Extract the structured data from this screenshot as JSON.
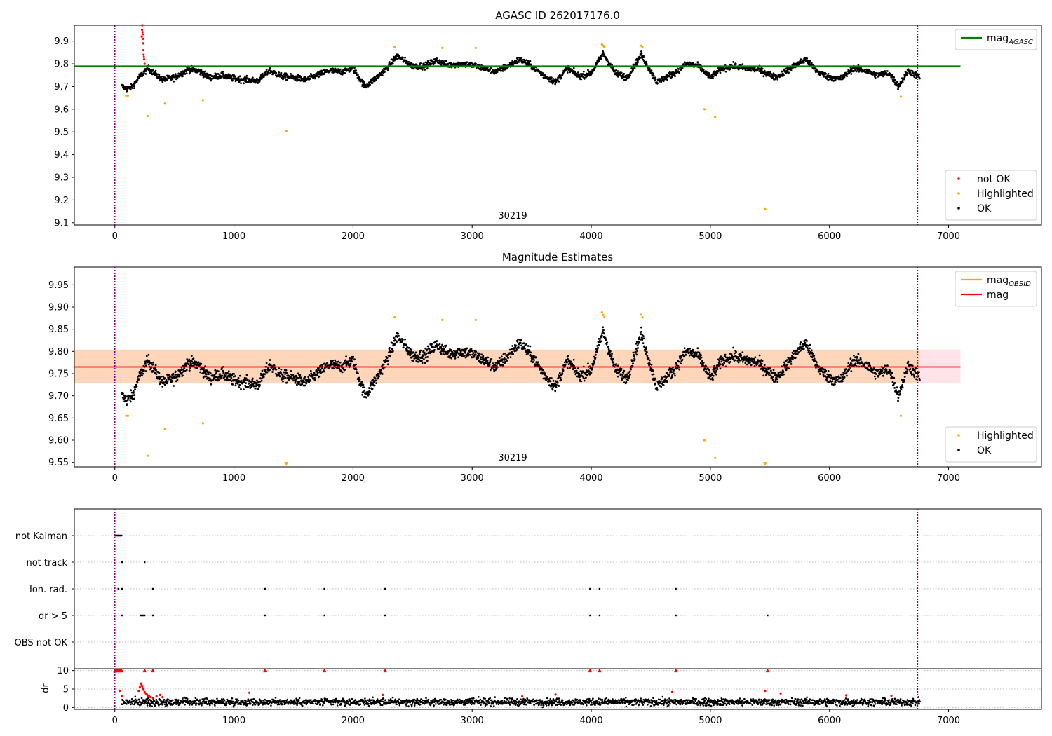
{
  "chart_data": [
    {
      "type": "scatter",
      "title": "AGASC ID 262017176.0",
      "xlim": [
        -340,
        7780
      ],
      "ylim": [
        9.09,
        9.97
      ],
      "xticks": [
        0,
        1000,
        2000,
        3000,
        4000,
        5000,
        6000,
        7000
      ],
      "yticks": [
        9.1,
        9.2,
        9.3,
        9.4,
        9.5,
        9.6,
        9.7,
        9.8,
        9.9
      ],
      "ytick_decimals": 1,
      "grid": false,
      "obsid_label": "30219",
      "obsid_label_x": 3330,
      "obs_boundaries": [
        0,
        6740
      ],
      "reference_lines": [
        {
          "name": "mag_AGASC",
          "label_main": "mag",
          "label_sub": "AGASC",
          "y": 9.79,
          "x_range": [
            -340,
            7100
          ],
          "color": "#008000"
        }
      ],
      "legends": [
        {
          "position": "top-right",
          "entries": [
            {
              "kind": "line",
              "label_main": "mag",
              "label_sub": "AGASC",
              "color": "#008000"
            }
          ]
        },
        {
          "position": "bottom-right",
          "entries": [
            {
              "kind": "point",
              "label": "not OK",
              "color": "#ff0000"
            },
            {
              "kind": "point",
              "label": "Highlighted",
              "color": "#ffa500"
            },
            {
              "kind": "point",
              "label": "OK",
              "color": "#000000"
            }
          ]
        }
      ],
      "series": [
        {
          "name": "OK",
          "color": "#000000",
          "style": "dense-band",
          "x_range": [
            60,
            6760
          ],
          "baseline": 9.762,
          "trend": [
            [
              60,
              9.7
            ],
            [
              100,
              9.69
            ],
            [
              150,
              9.7
            ],
            [
              200,
              9.74
            ],
            [
              280,
              9.78
            ],
            [
              330,
              9.76
            ],
            [
              400,
              9.73
            ],
            [
              500,
              9.74
            ],
            [
              620,
              9.775
            ],
            [
              700,
              9.77
            ],
            [
              800,
              9.74
            ],
            [
              900,
              9.75
            ],
            [
              1000,
              9.735
            ],
            [
              1100,
              9.73
            ],
            [
              1200,
              9.725
            ],
            [
              1300,
              9.77
            ],
            [
              1400,
              9.745
            ],
            [
              1500,
              9.74
            ],
            [
              1600,
              9.73
            ],
            [
              1700,
              9.75
            ],
            [
              1800,
              9.77
            ],
            [
              1900,
              9.765
            ],
            [
              2000,
              9.78
            ],
            [
              2100,
              9.7
            ],
            [
              2200,
              9.74
            ],
            [
              2300,
              9.79
            ],
            [
              2370,
              9.835
            ],
            [
              2500,
              9.79
            ],
            [
              2600,
              9.79
            ],
            [
              2700,
              9.815
            ],
            [
              2800,
              9.795
            ],
            [
              2900,
              9.8
            ],
            [
              3000,
              9.795
            ],
            [
              3100,
              9.78
            ],
            [
              3200,
              9.765
            ],
            [
              3300,
              9.79
            ],
            [
              3400,
              9.82
            ],
            [
              3500,
              9.79
            ],
            [
              3600,
              9.75
            ],
            [
              3700,
              9.72
            ],
            [
              3800,
              9.78
            ],
            [
              3900,
              9.745
            ],
            [
              4000,
              9.76
            ],
            [
              4100,
              9.845
            ],
            [
              4200,
              9.76
            ],
            [
              4300,
              9.74
            ],
            [
              4420,
              9.84
            ],
            [
              4550,
              9.72
            ],
            [
              4700,
              9.76
            ],
            [
              4800,
              9.8
            ],
            [
              4900,
              9.79
            ],
            [
              5000,
              9.74
            ],
            [
              5100,
              9.78
            ],
            [
              5200,
              9.79
            ],
            [
              5300,
              9.78
            ],
            [
              5400,
              9.775
            ],
            [
              5550,
              9.74
            ],
            [
              5700,
              9.79
            ],
            [
              5800,
              9.82
            ],
            [
              5900,
              9.765
            ],
            [
              6000,
              9.74
            ],
            [
              6100,
              9.735
            ],
            [
              6200,
              9.78
            ],
            [
              6300,
              9.77
            ],
            [
              6400,
              9.75
            ],
            [
              6500,
              9.76
            ],
            [
              6580,
              9.7
            ],
            [
              6660,
              9.77
            ],
            [
              6760,
              9.74
            ]
          ]
        },
        {
          "name": "not OK",
          "color": "#ff0000",
          "style": "cluster",
          "points": [
            [
              230,
              9.97
            ],
            [
              232,
              9.94
            ],
            [
              234,
              9.93
            ],
            [
              236,
              9.91
            ],
            [
              238,
              9.89
            ],
            [
              240,
              9.86
            ],
            [
              242,
              9.84
            ],
            [
              244,
              9.83
            ],
            [
              246,
              9.82
            ],
            [
              250,
              9.8
            ],
            [
              228,
              9.95
            ],
            [
              226,
              9.92
            ]
          ]
        },
        {
          "name": "Highlighted",
          "color": "#ffa500",
          "style": "points",
          "points": [
            [
              95,
              9.66
            ],
            [
              110,
              9.66
            ],
            [
              275,
              9.57
            ],
            [
              420,
              9.625
            ],
            [
              740,
              9.64
            ],
            [
              1440,
              9.505
            ],
            [
              2350,
              9.875
            ],
            [
              2750,
              9.87
            ],
            [
              3030,
              9.87
            ],
            [
              4090,
              9.885
            ],
            [
              4100,
              9.88
            ],
            [
              4110,
              9.875
            ],
            [
              4420,
              9.88
            ],
            [
              4430,
              9.875
            ],
            [
              4950,
              9.6
            ],
            [
              5040,
              9.565
            ],
            [
              5460,
              9.16
            ],
            [
              6600,
              9.655
            ]
          ]
        }
      ]
    },
    {
      "type": "scatter",
      "title": "Magnitude Estimates",
      "xlim": [
        -340,
        7780
      ],
      "ylim": [
        9.54,
        9.99
      ],
      "xticks": [
        0,
        1000,
        2000,
        3000,
        4000,
        5000,
        6000,
        7000
      ],
      "yticks": [
        9.55,
        9.6,
        9.65,
        9.7,
        9.75,
        9.8,
        9.85,
        9.9,
        9.95
      ],
      "ytick_decimals": 2,
      "grid": false,
      "obsid_label": "30219",
      "obsid_label_x": 3330,
      "obs_boundaries": [
        0,
        6740
      ],
      "bands": [
        {
          "y_range": [
            9.728,
            9.804
          ],
          "x_range": [
            -340,
            7100
          ],
          "color": "#ffc0cb",
          "opacity": 0.45
        },
        {
          "y_range": [
            9.728,
            9.804
          ],
          "x_range": [
            -340,
            6760
          ],
          "color": "#ffa500",
          "opacity": 0.2
        }
      ],
      "reference_lines": [
        {
          "name": "mag",
          "y": 9.765,
          "x_range": [
            -340,
            7100
          ],
          "color": "#ff0000"
        }
      ],
      "legends": [
        {
          "position": "top-right",
          "entries": [
            {
              "kind": "line",
              "label_main": "mag",
              "label_sub": "OBSID",
              "color": "#ffa500"
            },
            {
              "kind": "line",
              "label": "mag",
              "color": "#ff0000"
            }
          ]
        },
        {
          "position": "bottom-right",
          "entries": [
            {
              "kind": "point",
              "label": "Highlighted",
              "color": "#ffa500"
            },
            {
              "kind": "point",
              "label": "OK",
              "color": "#000000"
            }
          ]
        }
      ],
      "series": [
        {
          "name": "OK",
          "color": "#000000",
          "style": "dense-band",
          "x_range": [
            60,
            6760
          ],
          "same_as_panel": 0
        },
        {
          "name": "Highlighted",
          "color": "#ffa500",
          "style": "points",
          "points": [
            [
              95,
              9.655
            ],
            [
              110,
              9.655
            ],
            [
              275,
              9.565
            ],
            [
              420,
              9.625
            ],
            [
              740,
              9.638
            ],
            [
              2350,
              9.877
            ],
            [
              2750,
              9.871
            ],
            [
              3030,
              9.871
            ],
            [
              4090,
              9.888
            ],
            [
              4100,
              9.882
            ],
            [
              4110,
              9.877
            ],
            [
              4420,
              9.883
            ],
            [
              4430,
              9.877
            ],
            [
              4950,
              9.6
            ],
            [
              5040,
              9.56
            ],
            [
              6600,
              9.655
            ]
          ]
        },
        {
          "name": "Highlighted (clipped)",
          "color": "#ffa500",
          "style": "down-triangles",
          "points": [
            [
              1440,
              9.547
            ],
            [
              5460,
              9.547
            ]
          ]
        }
      ]
    },
    {
      "type": "scatter",
      "title": "",
      "xlim": [
        -340,
        7780
      ],
      "flag_rows": [
        "not Kalman",
        "not track",
        "Ion. rad.",
        "dr > 5",
        "OBS not OK"
      ],
      "obs_boundaries": [
        0,
        6740
      ],
      "flags": {
        "not Kalman": [
          0,
          8,
          16,
          24,
          32,
          40,
          48,
          56
        ],
        "not track": [
          60,
          250
        ],
        "Ion. rad.": [
          30,
          60,
          320,
          1260,
          1760,
          2270,
          3990,
          4070,
          4710
        ],
        "dr > 5": [
          60,
          220,
          230,
          240,
          250,
          320,
          1260,
          1760,
          2270,
          3990,
          4070,
          4710,
          5480
        ],
        "OBS not OK": []
      }
    },
    {
      "type": "scatter",
      "title": "",
      "ylabel": "dr",
      "xlim": [
        -340,
        7780
      ],
      "ylim": [
        -0.5,
        10.5
      ],
      "xticks": [
        0,
        1000,
        2000,
        3000,
        4000,
        5000,
        6000,
        7000
      ],
      "yticks": [
        0,
        5,
        10
      ],
      "ytick_decimals": 0,
      "grid": true,
      "obs_boundaries": [
        0,
        6740
      ],
      "series": [
        {
          "name": "dr OK",
          "color": "#000000",
          "style": "noise-band",
          "x_range": [
            60,
            6760
          ],
          "median": 1.5,
          "spread": 0.9
        },
        {
          "name": "dr not OK",
          "color": "#ff0000",
          "style": "points",
          "points": [
            [
              200,
              4.5
            ],
            [
              210,
              5.5
            ],
            [
              220,
              6.5
            ],
            [
              225,
              6.0
            ],
            [
              230,
              5.8
            ],
            [
              235,
              5.2
            ],
            [
              240,
              4.8
            ],
            [
              250,
              4.2
            ],
            [
              260,
              3.8
            ],
            [
              270,
              3.5
            ],
            [
              280,
              3.2
            ],
            [
              290,
              3.0
            ],
            [
              300,
              2.8
            ],
            [
              320,
              2.6
            ],
            [
              350,
              3.0
            ],
            [
              380,
              3.4
            ],
            [
              400,
              2.8
            ],
            [
              60,
              3.0
            ],
            [
              40,
              4.5
            ],
            [
              1130,
              4.0
            ],
            [
              5590,
              3.8
            ],
            [
              5460,
              4.5
            ],
            [
              4680,
              4.2
            ],
            [
              3700,
              3.5
            ],
            [
              2250,
              3.4
            ],
            [
              3420,
              3.0
            ],
            [
              6140,
              3.3
            ],
            [
              6520,
              3.2
            ]
          ]
        },
        {
          "name": "dr clipped",
          "color": "#ff0000",
          "style": "up-triangles",
          "points": [
            [
              0,
              10
            ],
            [
              8,
              10
            ],
            [
              16,
              10
            ],
            [
              24,
              10
            ],
            [
              32,
              10
            ],
            [
              40,
              10
            ],
            [
              48,
              10
            ],
            [
              56,
              10
            ],
            [
              250,
              10
            ],
            [
              320,
              10
            ],
            [
              1260,
              10
            ],
            [
              1760,
              10
            ],
            [
              2270,
              10
            ],
            [
              3990,
              10
            ],
            [
              4070,
              10
            ],
            [
              4710,
              10
            ],
            [
              5480,
              10
            ]
          ]
        }
      ]
    }
  ]
}
